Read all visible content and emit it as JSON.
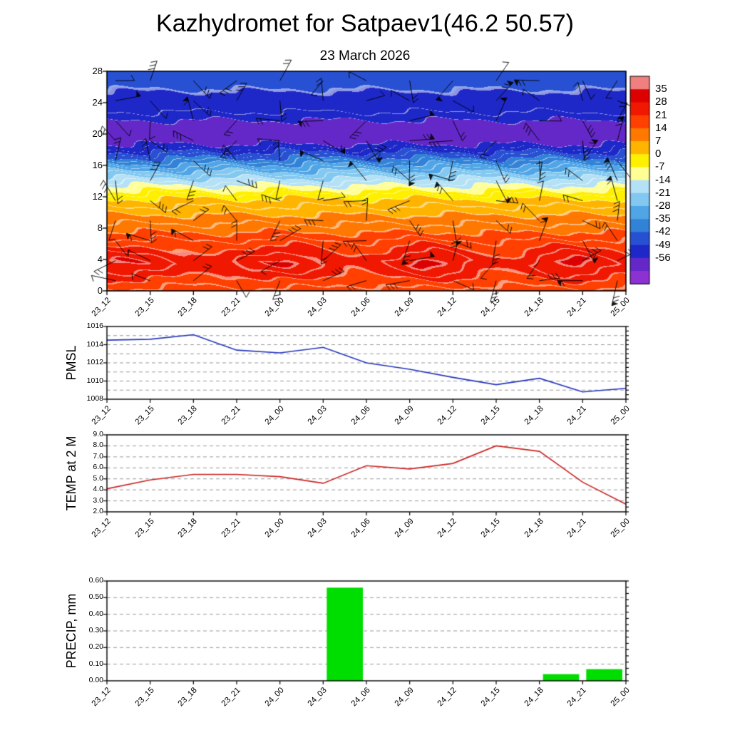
{
  "title": "Kazhydromet for Satpaev1(46.2 50.57)",
  "subtitle": "23 March 2026",
  "colors": {
    "pmsl_line": "#2233bb",
    "temp_line": "#cc2222",
    "precip_bar": "#00dd00",
    "grid": "#999999",
    "axis": "#000000"
  },
  "chart_data": [
    {
      "type": "heatmap",
      "title": "",
      "description": "Vertical temperature cross-section with wind barbs overlay",
      "overlay": "wind-barbs",
      "x": [
        "23_12",
        "23_15",
        "23_18",
        "23_21",
        "24_00",
        "24_03",
        "24_06",
        "24_09",
        "24_12",
        "24_15",
        "24_18",
        "24_21",
        "25_00"
      ],
      "ylim": [
        0,
        28
      ],
      "yticks": [
        0,
        4,
        8,
        12,
        16,
        20,
        24,
        28
      ],
      "colorbar": {
        "tick_labels": [
          "35",
          "28",
          "21",
          "14",
          "7",
          "0",
          "-7",
          "-14",
          "-21",
          "-28",
          "-35",
          "-42",
          "-49",
          "-56"
        ],
        "segment_colors": [
          "#f08080",
          "#dc0000",
          "#f01800",
          "#ff4000",
          "#ff7800",
          "#ffb400",
          "#fff000",
          "#ffff96",
          "#b4e1f5",
          "#82c8f0",
          "#50a5e6",
          "#3282d7",
          "#2850d2",
          "#1e28c8",
          "#6428c8",
          "#8c32d2"
        ]
      }
    },
    {
      "type": "line",
      "title": "PMSL",
      "x": [
        "23_12",
        "23_15",
        "23_18",
        "23_21",
        "24_00",
        "24_03",
        "24_06",
        "24_09",
        "24_12",
        "24_15",
        "24_18",
        "24_21",
        "25_00"
      ],
      "values": [
        1014.5,
        1014.6,
        1015.1,
        1013.4,
        1013.1,
        1013.7,
        1012.0,
        1011.3,
        1010.4,
        1009.6,
        1010.3,
        1008.8,
        1009.2
      ],
      "ylim": [
        1008,
        1016
      ],
      "grid_step": 1,
      "ytick_labels": [
        "1008",
        "1010",
        "1012",
        "1014",
        "1016"
      ],
      "grid": true,
      "line_color": "#2233bb"
    },
    {
      "type": "line",
      "title": "TEMP at 2 M",
      "x": [
        "23_12",
        "23_15",
        "23_18",
        "23_21",
        "24_00",
        "24_03",
        "24_06",
        "24_09",
        "24_12",
        "24_15",
        "24_18",
        "24_21",
        "25_00"
      ],
      "values": [
        4.1,
        4.9,
        5.4,
        5.4,
        5.2,
        4.6,
        6.2,
        5.9,
        6.4,
        8.0,
        7.5,
        4.7,
        2.7
      ],
      "ylim": [
        2,
        9
      ],
      "grid_step": 1,
      "ytick_labels": [
        "2.0",
        "3.0",
        "4.0",
        "5.0",
        "6.0",
        "7.0",
        "8.0",
        "9.0"
      ],
      "grid": true,
      "line_color": "#cc2222"
    },
    {
      "type": "bar",
      "title": "PRECIP, mm",
      "x": [
        "23_12",
        "23_15",
        "23_18",
        "23_21",
        "24_00",
        "24_03",
        "24_06",
        "24_09",
        "24_12",
        "24_15",
        "24_18",
        "24_21",
        "25_00"
      ],
      "values": [
        0,
        0,
        0,
        0,
        0,
        0,
        0.56,
        0,
        0,
        0,
        0,
        0.04,
        0.07
      ],
      "ylim": [
        0,
        0.6
      ],
      "grid_step": 0.1,
      "ytick_labels": [
        "0.00",
        "0.10",
        "0.20",
        "0.30",
        "0.40",
        "0.50",
        "0.60"
      ],
      "grid": true,
      "bar_color": "#00dd00"
    }
  ]
}
